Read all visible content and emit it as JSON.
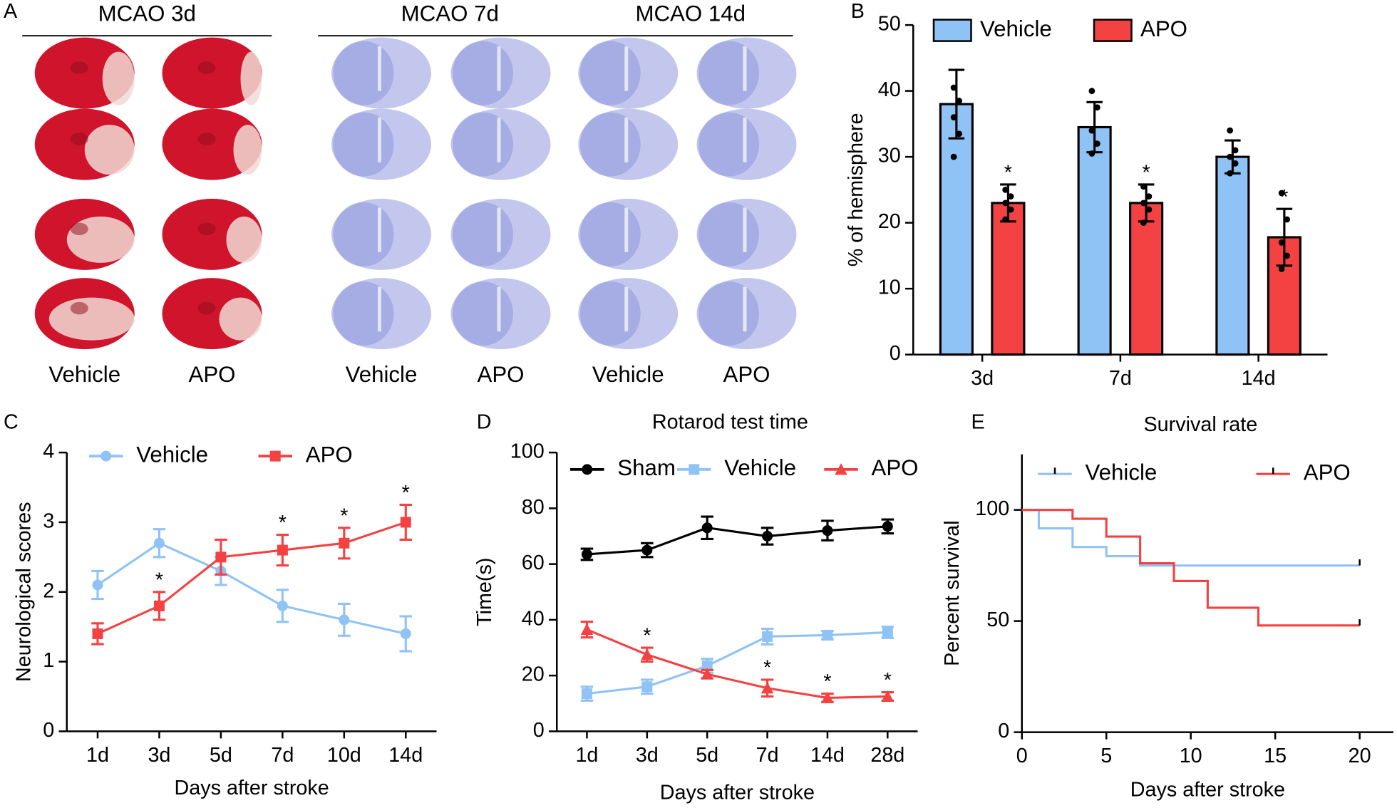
{
  "panel_a": {
    "label": "A",
    "headers": [
      "MCAO 3d",
      "MCAO 7d",
      "MCAO 14d"
    ],
    "columns": [
      "Vehicle",
      "APO",
      "Vehicle",
      "APO",
      "Vehicle",
      "APO"
    ]
  },
  "chart_data": [
    {
      "type": "bar",
      "label": "B",
      "ylabel": "% of hemisphere",
      "categories": [
        "3d",
        "7d",
        "14d"
      ],
      "ylim": [
        0,
        50
      ],
      "yticks": [
        0,
        10,
        20,
        30,
        40,
        50
      ],
      "series": [
        {
          "name": "Vehicle",
          "color": "#90c3f5",
          "values": [
            38,
            34.5,
            30
          ],
          "errors": [
            5.2,
            3.8,
            2.5
          ],
          "points": [
            [
              40.5,
              38.5,
              36,
              33.5,
              30
            ],
            [
              40,
              37.5,
              34,
              32,
              30.5
            ],
            [
              34,
              31,
              30,
              29,
              27.5
            ]
          ]
        },
        {
          "name": "APO",
          "color": "#f44242",
          "values": [
            23,
            23,
            17.8
          ],
          "errors": [
            2.8,
            2.8,
            4.3
          ],
          "points": [
            [
              25,
              24,
              23,
              22,
              20.5
            ],
            [
              25.5,
              24,
              23,
              22,
              20
            ],
            [
              24.5,
              20.5,
              17,
              15,
              13
            ]
          ],
          "significance": [
            "*",
            "*",
            "*"
          ]
        }
      ]
    },
    {
      "type": "line",
      "label": "C",
      "ylabel": "Neurological scores",
      "xlabel": "Days after stroke",
      "categories": [
        "1d",
        "3d",
        "5d",
        "7d",
        "10d",
        "14d"
      ],
      "ylim": [
        0,
        4
      ],
      "yticks": [
        0,
        1,
        2,
        3,
        4
      ],
      "series": [
        {
          "name": "Vehicle",
          "color": "#90c3f5",
          "marker": "circle",
          "values": [
            2.1,
            2.7,
            2.3,
            1.8,
            1.6,
            1.4
          ],
          "errors": [
            0.2,
            0.2,
            0.2,
            0.23,
            0.23,
            0.25
          ]
        },
        {
          "name": "APO",
          "color": "#f44242",
          "marker": "square",
          "values": [
            1.4,
            1.8,
            2.5,
            2.6,
            2.7,
            3.0
          ],
          "errors": [
            0.15,
            0.2,
            0.25,
            0.22,
            0.22,
            0.25
          ],
          "significance": [
            null,
            "*",
            null,
            "*",
            "*",
            "*"
          ]
        }
      ]
    },
    {
      "type": "line",
      "label": "D",
      "title": "Rotarod test time",
      "ylabel": "Time(s)",
      "xlabel": "Days after stroke",
      "categories": [
        "1d",
        "3d",
        "5d",
        "7d",
        "14d",
        "28d"
      ],
      "ylim": [
        0,
        100
      ],
      "yticks": [
        0,
        20,
        40,
        60,
        80,
        100
      ],
      "series": [
        {
          "name": "Sham",
          "color": "#000000",
          "marker": "circle",
          "values": [
            63.5,
            65,
            73,
            70,
            72,
            73.5
          ],
          "errors": [
            2,
            2.5,
            4,
            3,
            3.5,
            2.5
          ]
        },
        {
          "name": "Vehicle",
          "color": "#90c3f5",
          "marker": "square",
          "values": [
            13.5,
            16,
            23.5,
            34,
            34.5,
            35.5
          ],
          "errors": [
            2.5,
            2.5,
            2.5,
            2.8,
            1.5,
            2
          ]
        },
        {
          "name": "APO",
          "color": "#f44242",
          "marker": "triangle",
          "values": [
            36.5,
            27.5,
            20.5,
            15.5,
            12,
            12.5
          ],
          "errors": [
            2.8,
            2.5,
            1.5,
            3,
            1.5,
            1.5
          ],
          "significance": [
            null,
            "*",
            null,
            "*",
            "*",
            "*"
          ]
        }
      ]
    },
    {
      "type": "step",
      "label": "E",
      "title": "Survival rate",
      "ylabel": "Percent survival",
      "xlabel": "Days after stroke",
      "xlim": [
        0,
        22
      ],
      "xticks": [
        0,
        5,
        10,
        15,
        20
      ],
      "ylim": [
        0,
        125
      ],
      "yticks": [
        0,
        50,
        100
      ],
      "series": [
        {
          "name": "Vehicle",
          "color": "#90c3f5",
          "x": [
            0,
            1,
            3,
            5,
            7,
            20
          ],
          "values": [
            100,
            91.7,
            83.3,
            79.2,
            75,
            75
          ]
        },
        {
          "name": "APO",
          "color": "#f44242",
          "x": [
            0,
            3,
            5,
            7,
            9,
            11,
            14,
            20
          ],
          "values": [
            100,
            96,
            88,
            76,
            68,
            56,
            48,
            48
          ]
        }
      ]
    }
  ]
}
